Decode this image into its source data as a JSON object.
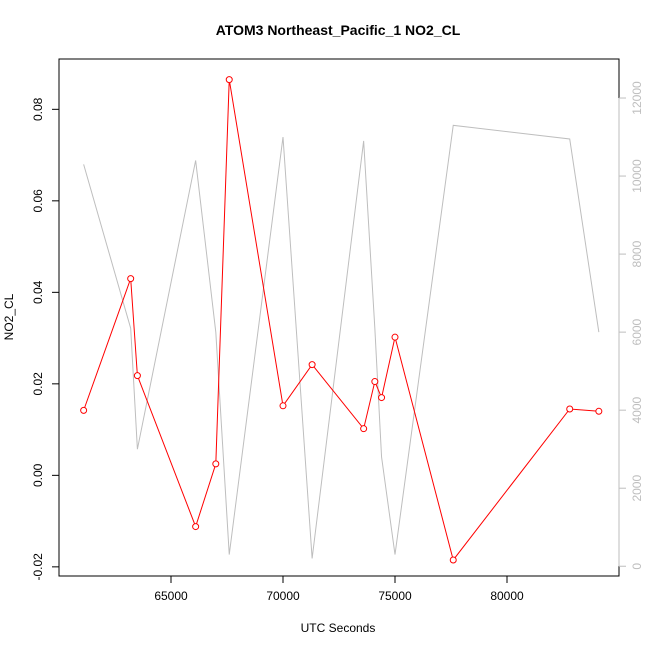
{
  "chart_data": {
    "type": "line",
    "title": "ATOM3 Northeast_Pacific_1 NO2_CL",
    "xlabel": "UTC Seconds",
    "ylabel": "NO2_CL",
    "xlim": [
      60000,
      85000
    ],
    "ylim": [
      -0.022,
      0.091
    ],
    "y2lim": [
      -250,
      13000
    ],
    "x_ticks": [
      65000,
      70000,
      75000,
      80000
    ],
    "y_ticks": [
      -0.02,
      0.0,
      0.02,
      0.04,
      0.06,
      0.08
    ],
    "y_tick_labels": [
      "-0.02",
      "0.00",
      "0.02",
      "0.04",
      "0.06",
      "0.08"
    ],
    "y2_ticks": [
      0,
      2000,
      4000,
      6000,
      8000,
      10000,
      12000
    ],
    "grid": false,
    "legend": "none",
    "series": [
      {
        "axis": "left",
        "color": "#ff0000",
        "marker": "open-circle",
        "x": [
          61100,
          63200,
          63500,
          66100,
          67000,
          67600,
          70000,
          71300,
          73600,
          74100,
          74400,
          75000,
          77600,
          82800,
          84100
        ],
        "y": [
          0.0142,
          0.043,
          0.0218,
          -0.0112,
          0.0025,
          0.0865,
          0.0152,
          0.0242,
          0.0102,
          0.0205,
          0.017,
          0.0302,
          -0.0185,
          0.0145,
          0.014
        ]
      },
      {
        "axis": "right",
        "color": "#bebebe",
        "marker": "none",
        "x": [
          61100,
          63200,
          63500,
          66100,
          67000,
          67600,
          70000,
          71300,
          73600,
          74100,
          74400,
          75000,
          77600,
          82800,
          84100
        ],
        "y": [
          10300,
          6100,
          3000,
          10400,
          6000,
          300,
          11000,
          200,
          10900,
          6100,
          2800,
          300,
          11300,
          10950,
          6000
        ]
      }
    ]
  }
}
